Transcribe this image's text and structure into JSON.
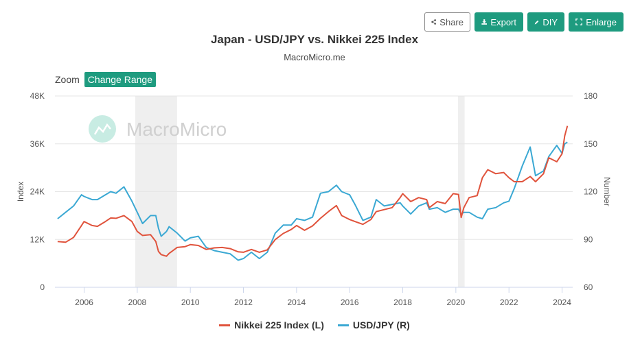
{
  "toolbar": {
    "share_label": "Share",
    "export_label": "Export",
    "diy_label": "DIY",
    "enlarge_label": "Enlarge"
  },
  "zoom": {
    "label": "Zoom",
    "button_label": "Change Range"
  },
  "watermark": "MacroMicro",
  "colors": {
    "nikkei": "#e0533c",
    "usdjpy": "#3aa8d3",
    "accent": "#1e9b7f",
    "recession": "#efefef"
  },
  "chart_data": {
    "type": "line",
    "title": "Japan - USD/JPY vs. Nikkei 225 Index",
    "subtitle": "MacroMicro.me",
    "xlabel": "",
    "ylabel_left": "Index",
    "ylabel_right": "Number",
    "xlim": [
      2004.9,
      2024.4
    ],
    "ylim_left": [
      0,
      48000
    ],
    "ylim_right": [
      60,
      180
    ],
    "x_ticks": [
      "2006",
      "2008",
      "2010",
      "2012",
      "2014",
      "2016",
      "2018",
      "2020",
      "2022",
      "2024"
    ],
    "y_ticks_left": [
      "0",
      "12K",
      "24K",
      "36K",
      "48K"
    ],
    "y_ticks_right": [
      "60",
      "90",
      "120",
      "150",
      "180"
    ],
    "grid": true,
    "legend_position": "bottom",
    "shaded_periods": [
      [
        2007.92,
        2009.5
      ],
      [
        2020.08,
        2020.33
      ]
    ],
    "series": [
      {
        "name": "Nikkei 225 Index (L)",
        "axis": "left",
        "x": [
          2005.0,
          2005.3,
          2005.6,
          2005.9,
          2006.0,
          2006.3,
          2006.5,
          2006.8,
          2007.0,
          2007.2,
          2007.5,
          2007.8,
          2008.0,
          2008.2,
          2008.5,
          2008.7,
          2008.8,
          2008.9,
          2009.1,
          2009.2,
          2009.5,
          2009.8,
          2010.0,
          2010.3,
          2010.6,
          2010.9,
          2011.2,
          2011.5,
          2011.8,
          2012.0,
          2012.3,
          2012.6,
          2012.9,
          2013.2,
          2013.5,
          2013.8,
          2014.0,
          2014.3,
          2014.6,
          2014.9,
          2015.2,
          2015.5,
          2015.7,
          2016.0,
          2016.2,
          2016.5,
          2016.8,
          2017.0,
          2017.3,
          2017.6,
          2017.9,
          2018.0,
          2018.3,
          2018.6,
          2018.9,
          2019.0,
          2019.3,
          2019.6,
          2019.9,
          2020.1,
          2020.2,
          2020.3,
          2020.5,
          2020.8,
          2021.0,
          2021.2,
          2021.5,
          2021.8,
          2022.0,
          2022.2,
          2022.5,
          2022.8,
          2023.0,
          2023.3,
          2023.5,
          2023.8,
          2024.0,
          2024.1,
          2024.2
        ],
        "values": [
          11500,
          11300,
          12500,
          15500,
          16500,
          15500,
          15300,
          16500,
          17400,
          17300,
          18000,
          16500,
          14000,
          13000,
          13200,
          11500,
          9000,
          8200,
          7800,
          8500,
          10000,
          10200,
          10700,
          10500,
          9500,
          9900,
          10000,
          9700,
          8900,
          8800,
          9500,
          8800,
          9400,
          12000,
          13500,
          14500,
          15500,
          14300,
          15400,
          17300,
          19000,
          20500,
          18000,
          17000,
          16500,
          15800,
          17000,
          19000,
          19500,
          20000,
          22500,
          23500,
          21500,
          22500,
          22000,
          20000,
          21500,
          21000,
          23500,
          23300,
          17500,
          20000,
          22500,
          23000,
          27500,
          29500,
          28500,
          28800,
          27500,
          26500,
          26500,
          27800,
          26500,
          28500,
          32500,
          31500,
          33500,
          38000,
          40500
        ]
      },
      {
        "name": "USD/JPY (R)",
        "axis": "right",
        "x": [
          2005.0,
          2005.3,
          2005.6,
          2005.9,
          2006.0,
          2006.3,
          2006.5,
          2006.8,
          2007.0,
          2007.2,
          2007.5,
          2007.8,
          2008.0,
          2008.2,
          2008.5,
          2008.7,
          2008.8,
          2008.9,
          2009.1,
          2009.2,
          2009.5,
          2009.8,
          2010.0,
          2010.3,
          2010.6,
          2010.9,
          2011.2,
          2011.5,
          2011.8,
          2012.0,
          2012.3,
          2012.6,
          2012.9,
          2013.2,
          2013.5,
          2013.8,
          2014.0,
          2014.3,
          2014.6,
          2014.9,
          2015.2,
          2015.5,
          2015.7,
          2016.0,
          2016.2,
          2016.5,
          2016.8,
          2017.0,
          2017.3,
          2017.6,
          2017.9,
          2018.0,
          2018.3,
          2018.6,
          2018.9,
          2019.0,
          2019.3,
          2019.6,
          2019.9,
          2020.1,
          2020.2,
          2020.3,
          2020.5,
          2020.8,
          2021.0,
          2021.2,
          2021.5,
          2021.8,
          2022.0,
          2022.2,
          2022.5,
          2022.8,
          2023.0,
          2023.3,
          2023.5,
          2023.8,
          2024.0,
          2024.1,
          2024.2
        ],
        "values": [
          103,
          107,
          111,
          118,
          117,
          115,
          115,
          118,
          120,
          119,
          123,
          114,
          107,
          100,
          105,
          105,
          97,
          92,
          95,
          98,
          94,
          89,
          91,
          92,
          85,
          83,
          82,
          81,
          77,
          78,
          82,
          78,
          82,
          94,
          99,
          99,
          103,
          102,
          104,
          119,
          120,
          124,
          120,
          118,
          112,
          102,
          104,
          115,
          111,
          112,
          113,
          111,
          106,
          111,
          113,
          109,
          110,
          107,
          109,
          109,
          106,
          107,
          107,
          104,
          103,
          109,
          110,
          113,
          114,
          122,
          136,
          148,
          130,
          133,
          142,
          149,
          144,
          150,
          151
        ]
      }
    ]
  }
}
